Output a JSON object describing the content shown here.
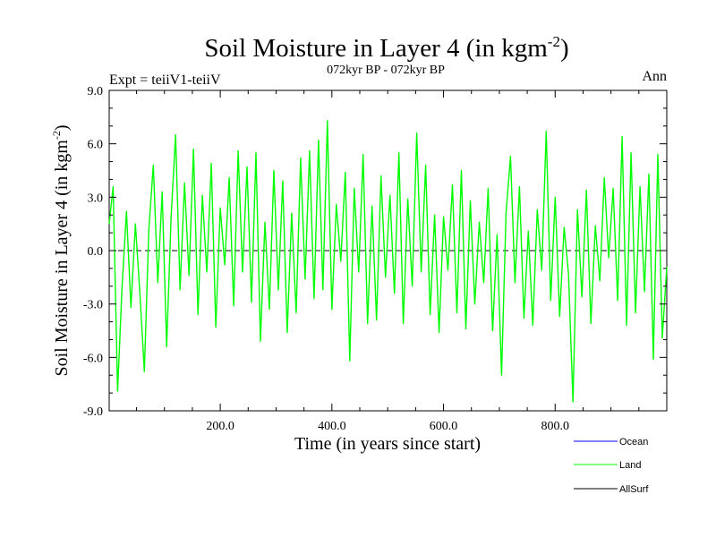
{
  "chart_data": {
    "type": "line",
    "title": "Soil Moisture in Layer 4 (in kgm",
    "title_superscript": "-2",
    "title_close": ")",
    "subtitle": "072kyr BP - 072kyr BP",
    "left_note": "Expt = teiiV1-teiiV",
    "right_note": "Ann",
    "xlabel": "Time (in years since start)",
    "ylabel": "Soil Moisture in Layer 4 (in kgm",
    "ylabel_superscript": "-2",
    "ylabel_close": ")",
    "xlim": [
      1,
      1000
    ],
    "ylim": [
      -9,
      9
    ],
    "x_ticks": [
      {
        "value": 200,
        "label": "200.0"
      },
      {
        "value": 400,
        "label": "400.0"
      },
      {
        "value": 600,
        "label": "600.0"
      },
      {
        "value": 800,
        "label": "800.0"
      }
    ],
    "y_ticks": [
      {
        "value": 9,
        "label": "9.0"
      },
      {
        "value": 6,
        "label": "6.0"
      },
      {
        "value": 3,
        "label": "3.0"
      },
      {
        "value": 0,
        "label": "0.0"
      },
      {
        "value": -3,
        "label": "-3.0"
      },
      {
        "value": -6,
        "label": "-6.0"
      },
      {
        "value": -9,
        "label": "-9.0"
      }
    ],
    "zero_line": true,
    "legend_position": "bottom-right",
    "legend": [
      {
        "name": "Ocean",
        "color": "#0000ff"
      },
      {
        "name": "Land",
        "color": "#00ff00"
      },
      {
        "name": "AllSurf",
        "color": "#000000"
      }
    ],
    "series": [
      {
        "name": "Land",
        "color": "#00ff00",
        "x": [
          1,
          8,
          16,
          24,
          32,
          40,
          48,
          56,
          64,
          72,
          80,
          88,
          96,
          104,
          112,
          120,
          128,
          136,
          144,
          152,
          160,
          168,
          176,
          184,
          192,
          200,
          208,
          216,
          224,
          232,
          240,
          248,
          256,
          264,
          272,
          280,
          288,
          296,
          304,
          312,
          320,
          328,
          336,
          344,
          352,
          360,
          368,
          376,
          384,
          392,
          400,
          408,
          416,
          424,
          432,
          440,
          448,
          456,
          464,
          472,
          480,
          488,
          496,
          504,
          512,
          520,
          528,
          536,
          544,
          552,
          560,
          568,
          576,
          584,
          592,
          600,
          608,
          616,
          624,
          632,
          640,
          648,
          656,
          664,
          672,
          680,
          688,
          696,
          704,
          712,
          720,
          728,
          736,
          744,
          752,
          760,
          768,
          776,
          784,
          792,
          800,
          808,
          816,
          824,
          832,
          840,
          848,
          856,
          864,
          872,
          880,
          888,
          896,
          904,
          912,
          920,
          928,
          936,
          944,
          952,
          960,
          968,
          976,
          984,
          992,
          1000
        ],
        "values": [
          1.5,
          3.6,
          -7.9,
          -2.1,
          2.2,
          -3.2,
          1.5,
          -2.4,
          -6.8,
          1.2,
          4.8,
          -1.8,
          3.3,
          -5.4,
          1.9,
          6.5,
          -2.2,
          3.8,
          -1.4,
          5.7,
          -3.6,
          3.1,
          -1.2,
          4.9,
          -4.3,
          2.4,
          -0.8,
          4.1,
          -3.1,
          5.6,
          -1.2,
          4.7,
          -2.9,
          5.5,
          -5.1,
          1.6,
          -3.3,
          4.5,
          -2.2,
          3.9,
          -4.6,
          2.1,
          -3.5,
          5.2,
          -1.6,
          5.6,
          -2.7,
          6.2,
          -2.2,
          7.3,
          -3.3,
          2.6,
          -0.6,
          4.4,
          -6.2,
          3.5,
          -1.2,
          5.4,
          -4.1,
          2.5,
          -3.9,
          4.2,
          -1.5,
          3.1,
          -2.4,
          5.5,
          -4.1,
          2.9,
          -2.0,
          6.6,
          -1.2,
          4.8,
          -3.6,
          2.0,
          -4.6,
          1.9,
          -1.1,
          3.7,
          -3.5,
          4.5,
          -4.4,
          2.8,
          -3.0,
          1.6,
          -1.8,
          3.5,
          -4.5,
          0.9,
          -7.0,
          2.1,
          5.3,
          -1.8,
          3.6,
          -3.8,
          1.1,
          -4.2,
          2.3,
          -1.1,
          6.7,
          -2.8,
          3.0,
          -3.7,
          1.3,
          -1.3,
          -8.5,
          2.3,
          -2.6,
          3.4,
          -4.1,
          1.4,
          -1.7,
          4.1,
          -0.4,
          3.5,
          -2.8,
          6.4,
          -4.2,
          5.5,
          -3.5,
          3.6,
          -2.3,
          4.3,
          -6.1,
          5.4,
          -4.9,
          -0.9
        ]
      }
    ]
  }
}
